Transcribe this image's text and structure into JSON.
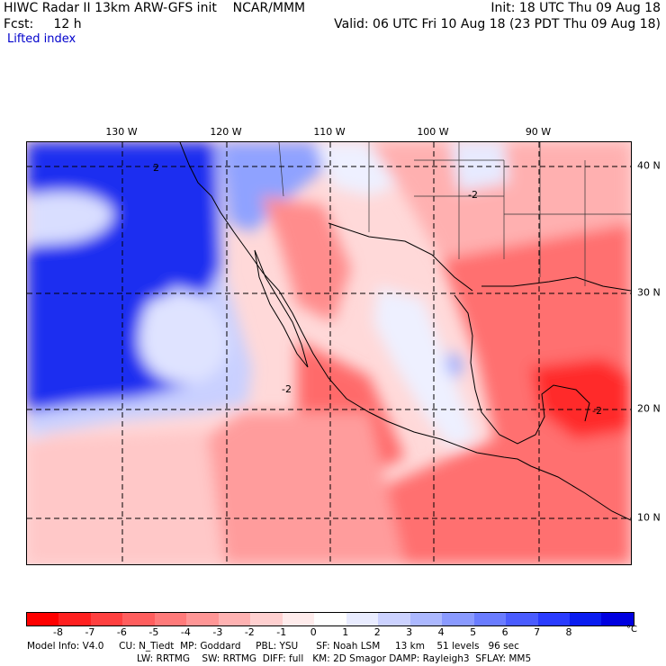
{
  "header": {
    "line1_left": "HIWC Radar II 13km ARW-GFS init    NCAR/MMM",
    "line2_left": "Fcst:     12 h",
    "line1_right": "Init: 18 UTC Thu 09 Aug 18",
    "line2_right": "Valid: 06 UTC Fri 10 Aug 18 (23 PDT Thu 09 Aug 18)",
    "field_name": "Lifted index"
  },
  "map": {
    "longitude_labels": [
      "130 W",
      "120 W",
      "110 W",
      "100 W",
      "90 W"
    ],
    "latitude_labels": [
      "40 N",
      "30 N",
      "20 N",
      "10 N"
    ],
    "contour_labels": [
      "2",
      "-2",
      "-2",
      "-2"
    ],
    "colors": {
      "strong_stable": "#0019e6",
      "mid_stable": "#7f96ff",
      "weak_stable": "#d7dcff",
      "neutral": "#ffffff",
      "weak_unstable": "#ffd9d9",
      "mid_unstable": "#ff8c8c",
      "strong_unstable": "#ff2a2a"
    }
  },
  "colorbar": {
    "ticks": [
      "-8",
      "-7",
      "-6",
      "-5",
      "-4",
      "-3",
      "-2",
      "-1",
      "0",
      "1",
      "2",
      "3",
      "4",
      "5",
      "6",
      "7",
      "8"
    ],
    "unit": "°C",
    "colors": [
      "#ff0000",
      "#ff2020",
      "#ff4040",
      "#ff5e5e",
      "#ff7a7a",
      "#ff9696",
      "#ffb2b2",
      "#ffd0d0",
      "#ffecec",
      "#ffffff",
      "#e9ecff",
      "#ccd2ff",
      "#acb8ff",
      "#8a9aff",
      "#6a7cff",
      "#4a5cff",
      "#2a3cff",
      "#0a1cf0",
      "#0000e0"
    ]
  },
  "footer": {
    "line1": "Model Info: V4.0     CU: N_Tiedt  MP: Goddard     PBL: YSU      SF: Noah LSM     13 km    51 levels   96 sec",
    "line2": "LW: RRTMG    SW: RRTMG  DIFF: full   KM: 2D Smagor DAMP: Rayleigh3  SFLAY: MM5"
  }
}
